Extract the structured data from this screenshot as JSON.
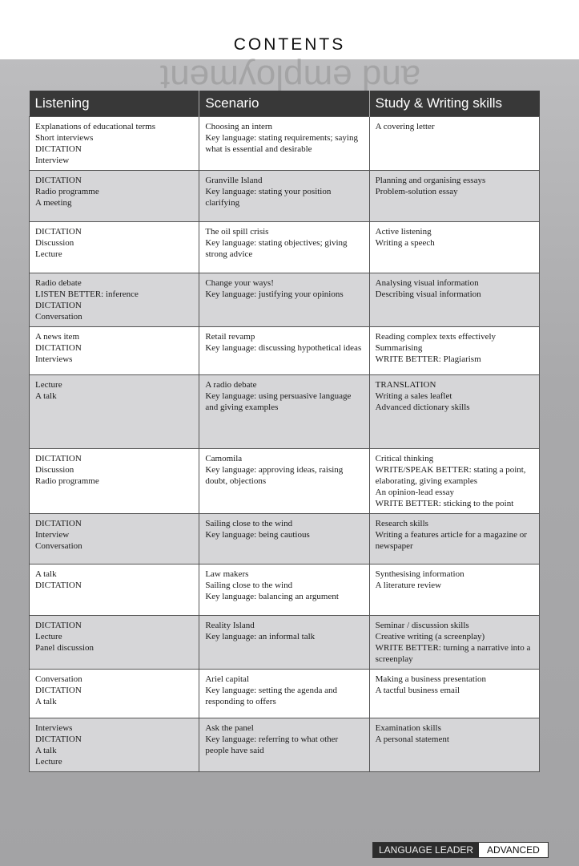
{
  "page_title": "CONTENTS",
  "background_watermark": "and employment",
  "table": {
    "headers": [
      "Listening",
      "Scenario",
      "Study & Writing skills"
    ],
    "rows": [
      {
        "listening": [
          "Explanations of educational terms",
          "Short interviews",
          "DICTATION",
          "Interview"
        ],
        "scenario": [
          "Choosing an intern",
          "Key language: stating requirements; saying what is essential and desirable"
        ],
        "study": [
          "A covering letter"
        ]
      },
      {
        "listening": [
          "DICTATION",
          "Radio programme",
          "A meeting"
        ],
        "scenario": [
          "Granville Island",
          "Key language: stating your position clarifying"
        ],
        "study": [
          "Planning and organising essays",
          "Problem-solution essay"
        ]
      },
      {
        "listening": [
          "DICTATION",
          "Discussion",
          "Lecture"
        ],
        "scenario": [
          "The oil spill crisis",
          "Key language: stating objectives; giving strong advice"
        ],
        "study": [
          "Active listening",
          "Writing a speech"
        ]
      },
      {
        "listening": [
          "Radio debate",
          "LISTEN BETTER: inference",
          "DICTATION",
          "Conversation"
        ],
        "scenario": [
          "Change your ways!",
          "Key language: justifying your opinions"
        ],
        "study": [
          "Analysing visual information",
          "Describing visual information"
        ]
      },
      {
        "listening": [
          "A news item",
          "DICTATION",
          "Interviews"
        ],
        "scenario": [
          "Retail revamp",
          "Key language: discussing hypothetical ideas"
        ],
        "study": [
          "Reading complex texts effectively",
          "Summarising",
          "WRITE BETTER: Plagiarism"
        ]
      },
      {
        "listening": [
          "Lecture",
          "A talk"
        ],
        "scenario": [
          "A radio debate",
          "Key language: using persuasive language and giving examples"
        ],
        "study": [
          "TRANSLATION",
          "Writing a sales leaflet",
          "Advanced dictionary skills"
        ]
      },
      {
        "listening": [
          "DICTATION",
          "Discussion",
          "Radio programme"
        ],
        "scenario": [
          "Camomila",
          "Key language: approving ideas, raising doubt, objections"
        ],
        "study": [
          "Critical thinking",
          "WRITE/SPEAK BETTER: stating a point, elaborating, giving examples",
          "An opinion-lead essay",
          "WRITE BETTER: sticking to the point"
        ]
      },
      {
        "listening": [
          "DICTATION",
          "Interview",
          "Conversation"
        ],
        "scenario": [
          "Sailing close to the wind",
          "Key language: being cautious"
        ],
        "study": [
          "Research skills",
          "Writing a features article for a magazine or newspaper"
        ]
      },
      {
        "listening": [
          "A talk",
          "DICTATION"
        ],
        "scenario": [
          "Law makers",
          "Sailing close to the wind",
          "Key language: balancing an argument"
        ],
        "study": [
          "Synthesising information",
          "A literature review"
        ]
      },
      {
        "listening": [
          "DICTATION",
          "Lecture",
          "Panel discussion"
        ],
        "scenario": [
          "Reality Island",
          "Key language: an informal talk"
        ],
        "study": [
          "Seminar / discussion skills",
          "Creative writing (a screenplay)",
          "WRITE BETTER: turning a narrative into a screenplay"
        ]
      },
      {
        "listening": [
          "Conversation",
          "DICTATION",
          "A talk"
        ],
        "scenario": [
          "Ariel capital",
          "Key language: setting the agenda and responding to offers"
        ],
        "study": [
          "Making a business presentation",
          "A tactful business email"
        ]
      },
      {
        "listening": [
          "Interviews",
          "DICTATION",
          "A talk",
          "Lecture"
        ],
        "scenario": [
          "Ask the panel",
          "Key language: referring to what other people have said"
        ],
        "study": [
          "Examination skills",
          "A personal statement"
        ]
      }
    ]
  },
  "footer": {
    "series": "LANGUAGE LEADER",
    "level": "ADVANCED"
  },
  "colors": {
    "header_bg": "#383838",
    "alt_row": "#d6d6d8",
    "background": "#a9a9ab"
  }
}
